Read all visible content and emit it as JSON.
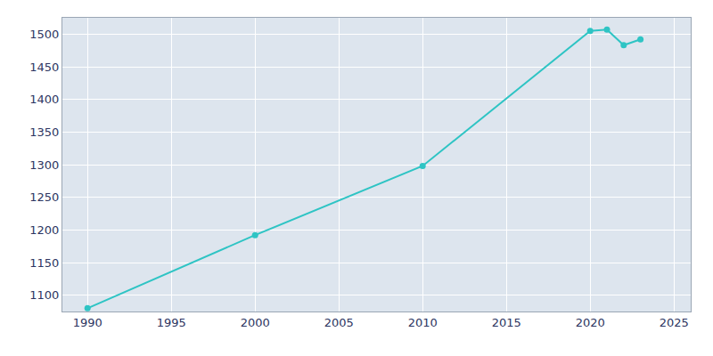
{
  "chart_data": {
    "type": "line",
    "x": [
      1990,
      2000,
      2010,
      2020,
      2021,
      2022,
      2023
    ],
    "values": [
      1080,
      1192,
      1298,
      1505,
      1507,
      1483,
      1492
    ],
    "color": "#2EC4C4",
    "marker": "circle",
    "xlim": [
      1988.5,
      2026
    ],
    "ylim": [
      1075,
      1525
    ],
    "xticks": [
      1990,
      1995,
      2000,
      2005,
      2010,
      2015,
      2020,
      2025
    ],
    "yticks": [
      1100,
      1150,
      1200,
      1250,
      1300,
      1350,
      1400,
      1450,
      1500
    ],
    "grid": true
  }
}
